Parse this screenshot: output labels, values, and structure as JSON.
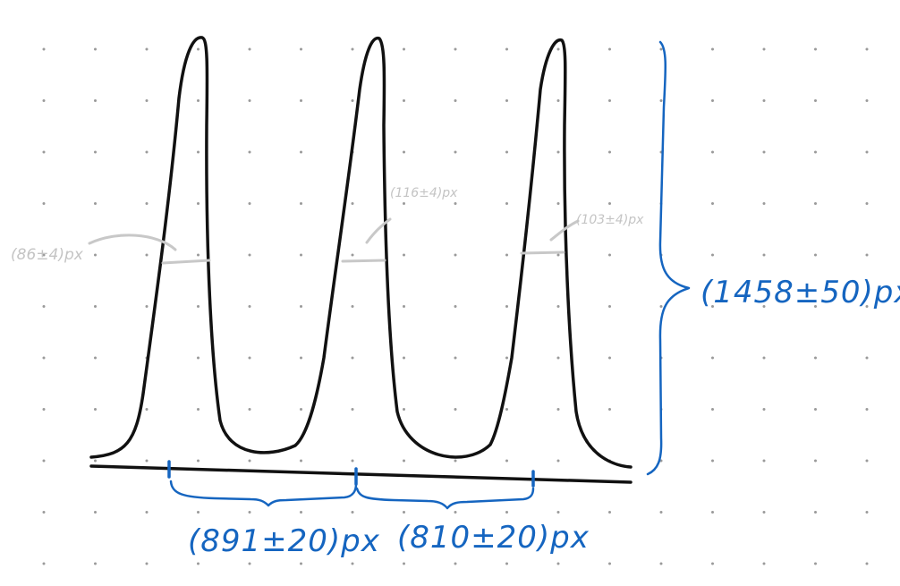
{
  "annotations": {
    "total_height": "(1458±50)px",
    "spacing_1": "(891±20)px",
    "spacing_2": "(810±20)px",
    "fwhm_1": "(86±4)px",
    "fwhm_2": "(116±4)px",
    "fwhm_3": "(103±4)px"
  },
  "colors": {
    "curve": "#111111",
    "annotation_blue": "#1565c0",
    "annotation_gray": "#c4c4c4",
    "grid_dot": "#9a9a9a"
  }
}
